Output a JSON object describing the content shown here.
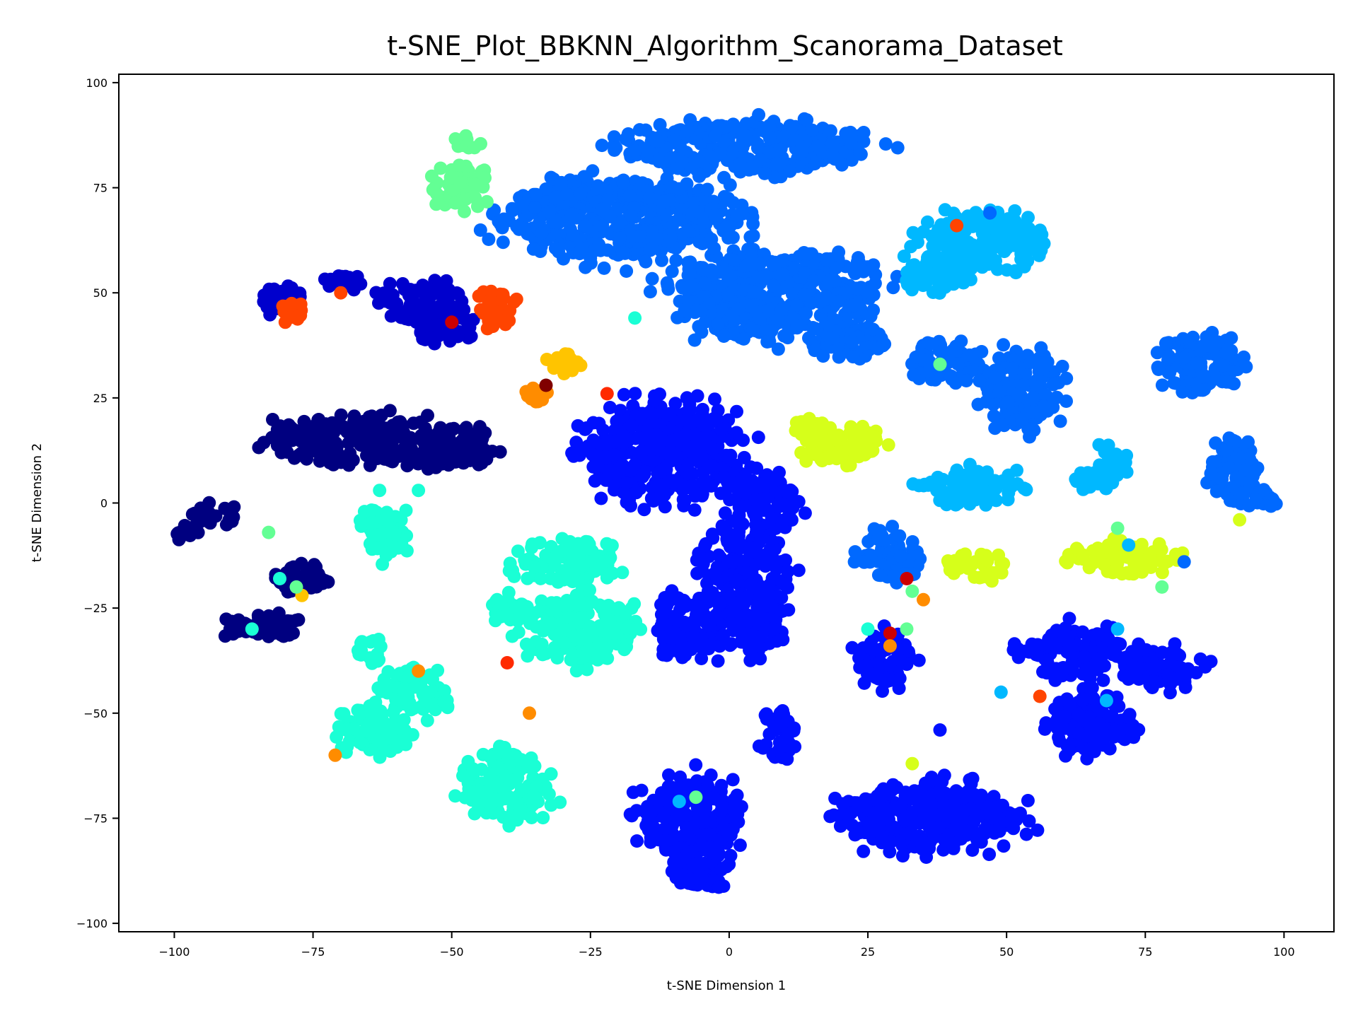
{
  "chart_data": {
    "type": "scatter",
    "title": "t-SNE_Plot_BBKNN_Algorithm_Scanorama_Dataset",
    "xlabel": "t-SNE Dimension 1",
    "ylabel": "t-SNE Dimension 2",
    "xlim": [
      -110,
      109
    ],
    "ylim": [
      -102,
      102
    ],
    "xticks": [
      -100,
      -75,
      -50,
      -25,
      0,
      25,
      50,
      75,
      100
    ],
    "xtick_labels": [
      "−100",
      "−75",
      "−50",
      "−25",
      "0",
      "25",
      "50",
      "75",
      "100"
    ],
    "yticks": [
      100,
      75,
      50,
      25,
      0,
      -25,
      -50,
      -75,
      -100
    ],
    "ytick_labels": [
      "100",
      "75",
      "50",
      "25",
      "0",
      "−25",
      "−50",
      "−75",
      "−100"
    ],
    "grid": false,
    "legend": "none",
    "colormap": "jet",
    "clusters": [
      {
        "color": "#0069ff",
        "cx": 3,
        "cy": 85,
        "rx": 22,
        "ry": 6
      },
      {
        "color": "#0069ff",
        "cx": -20,
        "cy": 68,
        "rx": 20,
        "ry": 10
      },
      {
        "color": "#0069ff",
        "cx": 8,
        "cy": 50,
        "rx": 18,
        "ry": 11
      },
      {
        "color": "#0069ff",
        "cx": 22,
        "cy": 38,
        "rx": 6,
        "ry": 4
      },
      {
        "color": "#00b8ff",
        "cx": 46,
        "cy": 62,
        "rx": 11,
        "ry": 7
      },
      {
        "color": "#00b8ff",
        "cx": 37,
        "cy": 55,
        "rx": 6,
        "ry": 4
      },
      {
        "color": "#0069ff",
        "cx": 39,
        "cy": 33,
        "rx": 6,
        "ry": 5
      },
      {
        "color": "#0069ff",
        "cx": 53,
        "cy": 27,
        "rx": 7,
        "ry": 9
      },
      {
        "color": "#0069ff",
        "cx": 85,
        "cy": 33,
        "rx": 7,
        "ry": 7
      },
      {
        "color": "#0069ff",
        "cx": 91,
        "cy": 8,
        "rx": 4,
        "ry": 7
      },
      {
        "color": "#0069ff",
        "cx": 95,
        "cy": 1,
        "rx": 4,
        "ry": 2
      },
      {
        "color": "#00b8ff",
        "cx": 69,
        "cy": 10,
        "rx": 3,
        "ry": 4
      },
      {
        "color": "#00b8ff",
        "cx": 65,
        "cy": 5,
        "rx": 3,
        "ry": 2
      },
      {
        "color": "#00b8ff",
        "cx": 44,
        "cy": 4,
        "rx": 9,
        "ry": 4
      },
      {
        "color": "#0069ff",
        "cx": 29,
        "cy": -13,
        "rx": 5,
        "ry": 6
      },
      {
        "color": "#63ff94",
        "cx": -48,
        "cy": 75,
        "rx": 5,
        "ry": 5
      },
      {
        "color": "#63ff94",
        "cx": -47,
        "cy": 86,
        "rx": 2,
        "ry": 1.5
      },
      {
        "color": "#0000cd",
        "cx": -81,
        "cy": 48,
        "rx": 4,
        "ry": 3
      },
      {
        "color": "#0000cd",
        "cx": -69,
        "cy": 53,
        "rx": 3,
        "ry": 2
      },
      {
        "color": "#0000cd",
        "cx": -56,
        "cy": 48,
        "rx": 7,
        "ry": 5
      },
      {
        "color": "#0000cd",
        "cx": -51,
        "cy": 42,
        "rx": 5,
        "ry": 4
      },
      {
        "color": "#ff4400",
        "cx": -79,
        "cy": 46,
        "rx": 2,
        "ry": 2
      },
      {
        "color": "#ff4400",
        "cx": -42,
        "cy": 47,
        "rx": 3,
        "ry": 5
      },
      {
        "color": "#000080",
        "cx": -67,
        "cy": 15,
        "rx": 15,
        "ry": 6
      },
      {
        "color": "#000080",
        "cx": -50,
        "cy": 13,
        "rx": 7,
        "ry": 5
      },
      {
        "color": "#000080",
        "cx": -93,
        "cy": -3,
        "rx": 4,
        "ry": 2.5
      },
      {
        "color": "#000080",
        "cx": -98,
        "cy": -7,
        "rx": 2,
        "ry": 1.5
      },
      {
        "color": "#000080",
        "cx": -77,
        "cy": -18,
        "rx": 5,
        "ry": 3
      },
      {
        "color": "#000080",
        "cx": -84,
        "cy": -30,
        "rx": 6,
        "ry": 3.5
      },
      {
        "color": "#0010ff",
        "cx": -12,
        "cy": 12,
        "rx": 14,
        "ry": 12
      },
      {
        "color": "#0010ff",
        "cx": 6,
        "cy": -1,
        "rx": 6,
        "ry": 8
      },
      {
        "color": "#0010ff",
        "cx": 3,
        "cy": -22,
        "rx": 8,
        "ry": 14
      },
      {
        "color": "#0010ff",
        "cx": -8,
        "cy": -29,
        "rx": 5,
        "ry": 8
      },
      {
        "color": "#0010ff",
        "cx": 9,
        "cy": -55,
        "rx": 3,
        "ry": 6
      },
      {
        "color": "#0010ff",
        "cx": -7,
        "cy": -75,
        "rx": 9,
        "ry": 10
      },
      {
        "color": "#0010ff",
        "cx": -5,
        "cy": -87,
        "rx": 5,
        "ry": 5
      },
      {
        "color": "#0010ff",
        "cx": 36,
        "cy": -75,
        "rx": 16,
        "ry": 8
      },
      {
        "color": "#0010ff",
        "cx": 28,
        "cy": -37,
        "rx": 5,
        "ry": 6
      },
      {
        "color": "#0010ff",
        "cx": 62,
        "cy": -35,
        "rx": 9,
        "ry": 6
      },
      {
        "color": "#0010ff",
        "cx": 65,
        "cy": -52,
        "rx": 7,
        "ry": 8
      },
      {
        "color": "#0010ff",
        "cx": 78,
        "cy": -39,
        "rx": 7,
        "ry": 5
      },
      {
        "color": "#1affd5",
        "cx": -62,
        "cy": -7,
        "rx": 4,
        "ry": 6
      },
      {
        "color": "#1affd5",
        "cx": -30,
        "cy": -14,
        "rx": 9,
        "ry": 5
      },
      {
        "color": "#1affd5",
        "cx": -27,
        "cy": -30,
        "rx": 10,
        "ry": 8
      },
      {
        "color": "#1affd5",
        "cx": -39,
        "cy": -25,
        "rx": 4,
        "ry": 3
      },
      {
        "color": "#1affd5",
        "cx": -57,
        "cy": -45,
        "rx": 6,
        "ry": 6
      },
      {
        "color": "#1affd5",
        "cx": -64,
        "cy": -54,
        "rx": 6,
        "ry": 6
      },
      {
        "color": "#1affd5",
        "cx": -40,
        "cy": -67,
        "rx": 8,
        "ry": 8
      },
      {
        "color": "#1affd5",
        "cx": -65,
        "cy": -35,
        "rx": 2,
        "ry": 3
      },
      {
        "color": "#d6ff1a",
        "cx": 20,
        "cy": 14,
        "rx": 8,
        "ry": 4
      },
      {
        "color": "#d6ff1a",
        "cx": 15,
        "cy": 18,
        "rx": 3,
        "ry": 2
      },
      {
        "color": "#d6ff1a",
        "cx": 45,
        "cy": -15,
        "rx": 5,
        "ry": 3
      },
      {
        "color": "#d6ff1a",
        "cx": 71,
        "cy": -13,
        "rx": 9,
        "ry": 4
      },
      {
        "color": "#ffc400",
        "cx": -30,
        "cy": 33,
        "rx": 3,
        "ry": 2
      },
      {
        "color": "#ff8c00",
        "cx": -35,
        "cy": 26,
        "rx": 2,
        "ry": 1.5
      }
    ],
    "points": [
      {
        "x": -33,
        "y": 28,
        "color": "#800000"
      },
      {
        "x": -22,
        "y": 26,
        "color": "#ff2a00"
      },
      {
        "x": -70,
        "y": 50,
        "color": "#ff4400"
      },
      {
        "x": -80,
        "y": 43,
        "color": "#ff4400"
      },
      {
        "x": -50,
        "y": 43,
        "color": "#cc0000"
      },
      {
        "x": -77,
        "y": -22,
        "color": "#ffc400"
      },
      {
        "x": -78,
        "y": -20,
        "color": "#63ff94"
      },
      {
        "x": -86,
        "y": -30,
        "color": "#1affd5"
      },
      {
        "x": -81,
        "y": -18,
        "color": "#1affd5"
      },
      {
        "x": -83,
        "y": -7,
        "color": "#63ff94"
      },
      {
        "x": -56,
        "y": -40,
        "color": "#ff8c00"
      },
      {
        "x": -71,
        "y": -60,
        "color": "#ff8c00"
      },
      {
        "x": -36,
        "y": -50,
        "color": "#ff8c00"
      },
      {
        "x": -40,
        "y": -38,
        "color": "#ff2a00"
      },
      {
        "x": -63,
        "y": 3,
        "color": "#1affd5"
      },
      {
        "x": -56,
        "y": 3,
        "color": "#1affd5"
      },
      {
        "x": -17,
        "y": 44,
        "color": "#1affd5"
      },
      {
        "x": 32,
        "y": -18,
        "color": "#cc0000"
      },
      {
        "x": 35,
        "y": -23,
        "color": "#ff8c00"
      },
      {
        "x": 29,
        "y": -31,
        "color": "#cc0000"
      },
      {
        "x": 29,
        "y": -34,
        "color": "#ff8c00"
      },
      {
        "x": 25,
        "y": -30,
        "color": "#1affd5"
      },
      {
        "x": 32,
        "y": -30,
        "color": "#63ff94"
      },
      {
        "x": 33,
        "y": -21,
        "color": "#63ff94"
      },
      {
        "x": 33,
        "y": -62,
        "color": "#d6ff1a"
      },
      {
        "x": 56,
        "y": -46,
        "color": "#ff4400"
      },
      {
        "x": 49,
        "y": -45,
        "color": "#00b8ff"
      },
      {
        "x": 68,
        "y": -47,
        "color": "#00b8ff"
      },
      {
        "x": 70,
        "y": -30,
        "color": "#00b8ff"
      },
      {
        "x": 92,
        "y": -4,
        "color": "#d6ff1a"
      },
      {
        "x": 70,
        "y": -6,
        "color": "#63ff94"
      },
      {
        "x": 78,
        "y": -20,
        "color": "#63ff94"
      },
      {
        "x": 38,
        "y": 33,
        "color": "#63ff94"
      },
      {
        "x": 47,
        "y": 69,
        "color": "#0069ff"
      },
      {
        "x": -6,
        "y": -70,
        "color": "#63ff94"
      },
      {
        "x": -9,
        "y": -71,
        "color": "#00b8ff"
      },
      {
        "x": 38,
        "y": -54,
        "color": "#0010ff"
      },
      {
        "x": 72,
        "y": -10,
        "color": "#00b8ff"
      },
      {
        "x": 82,
        "y": -14,
        "color": "#0069ff"
      },
      {
        "x": 41,
        "y": 66,
        "color": "#ff4400"
      }
    ]
  }
}
